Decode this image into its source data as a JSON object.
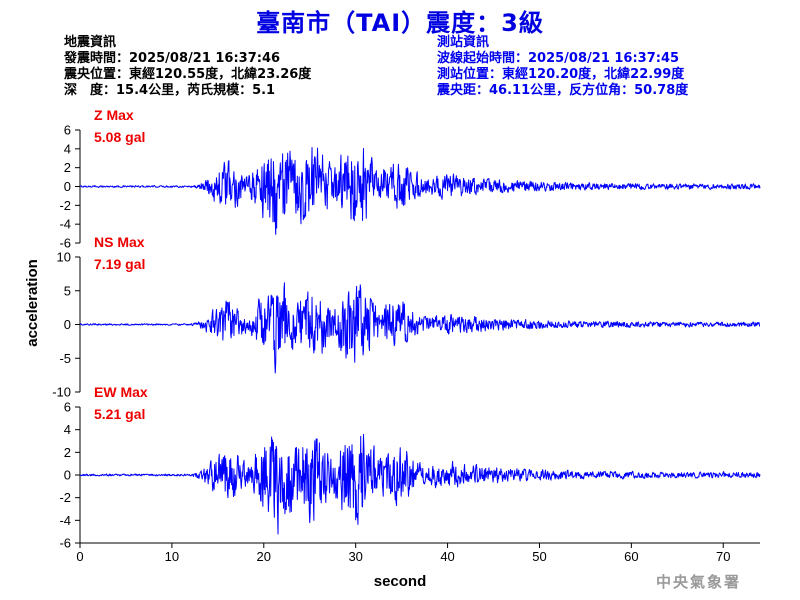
{
  "header": {
    "title": "臺南市（TAI）震度：3級"
  },
  "earthquake_info": {
    "heading": "地震資訊",
    "origin_time": "發震時間：2025/08/21 16:37:46",
    "epicenter": "震央位置：東經120.55度，北緯23.26度",
    "depth_magnitude": "深　度：15.4公里，芮氏規模：5.1"
  },
  "station_info": {
    "heading": "測站資訊",
    "wave_onset": "波線起始時間：2025/08/21 16:37:45",
    "station_location": "測站位置：東經120.20度，北緯22.99度",
    "distance_azimuth": "震央距：46.11公里，反方位角：50.78度"
  },
  "watermark": "中央氣象署",
  "chart_data": {
    "type": "line",
    "x_label": "second",
    "y_label": "acceleration",
    "xlim": [
      0,
      74
    ],
    "x_ticks": [
      0,
      10,
      20,
      30,
      40,
      50,
      60,
      70
    ],
    "line_color": "#0000ff",
    "label_color": "#ee0000",
    "panels": [
      {
        "component": "Z Max",
        "max_value": "5.08 gal",
        "peak": 5.08,
        "ylim": [
          -6,
          6
        ],
        "y_ticks": [
          6,
          4,
          2,
          0,
          -2,
          -4,
          -6
        ]
      },
      {
        "component": "NS Max",
        "max_value": "7.19 gal",
        "peak": 7.19,
        "ylim": [
          -10,
          10
        ],
        "y_ticks": [
          10,
          5,
          0,
          -5,
          -10
        ]
      },
      {
        "component": "EW Max",
        "max_value": "5.21 gal",
        "peak": 5.21,
        "ylim": [
          -6,
          6
        ],
        "y_ticks": [
          6,
          4,
          2,
          0,
          -2,
          -4,
          -6
        ]
      }
    ]
  }
}
